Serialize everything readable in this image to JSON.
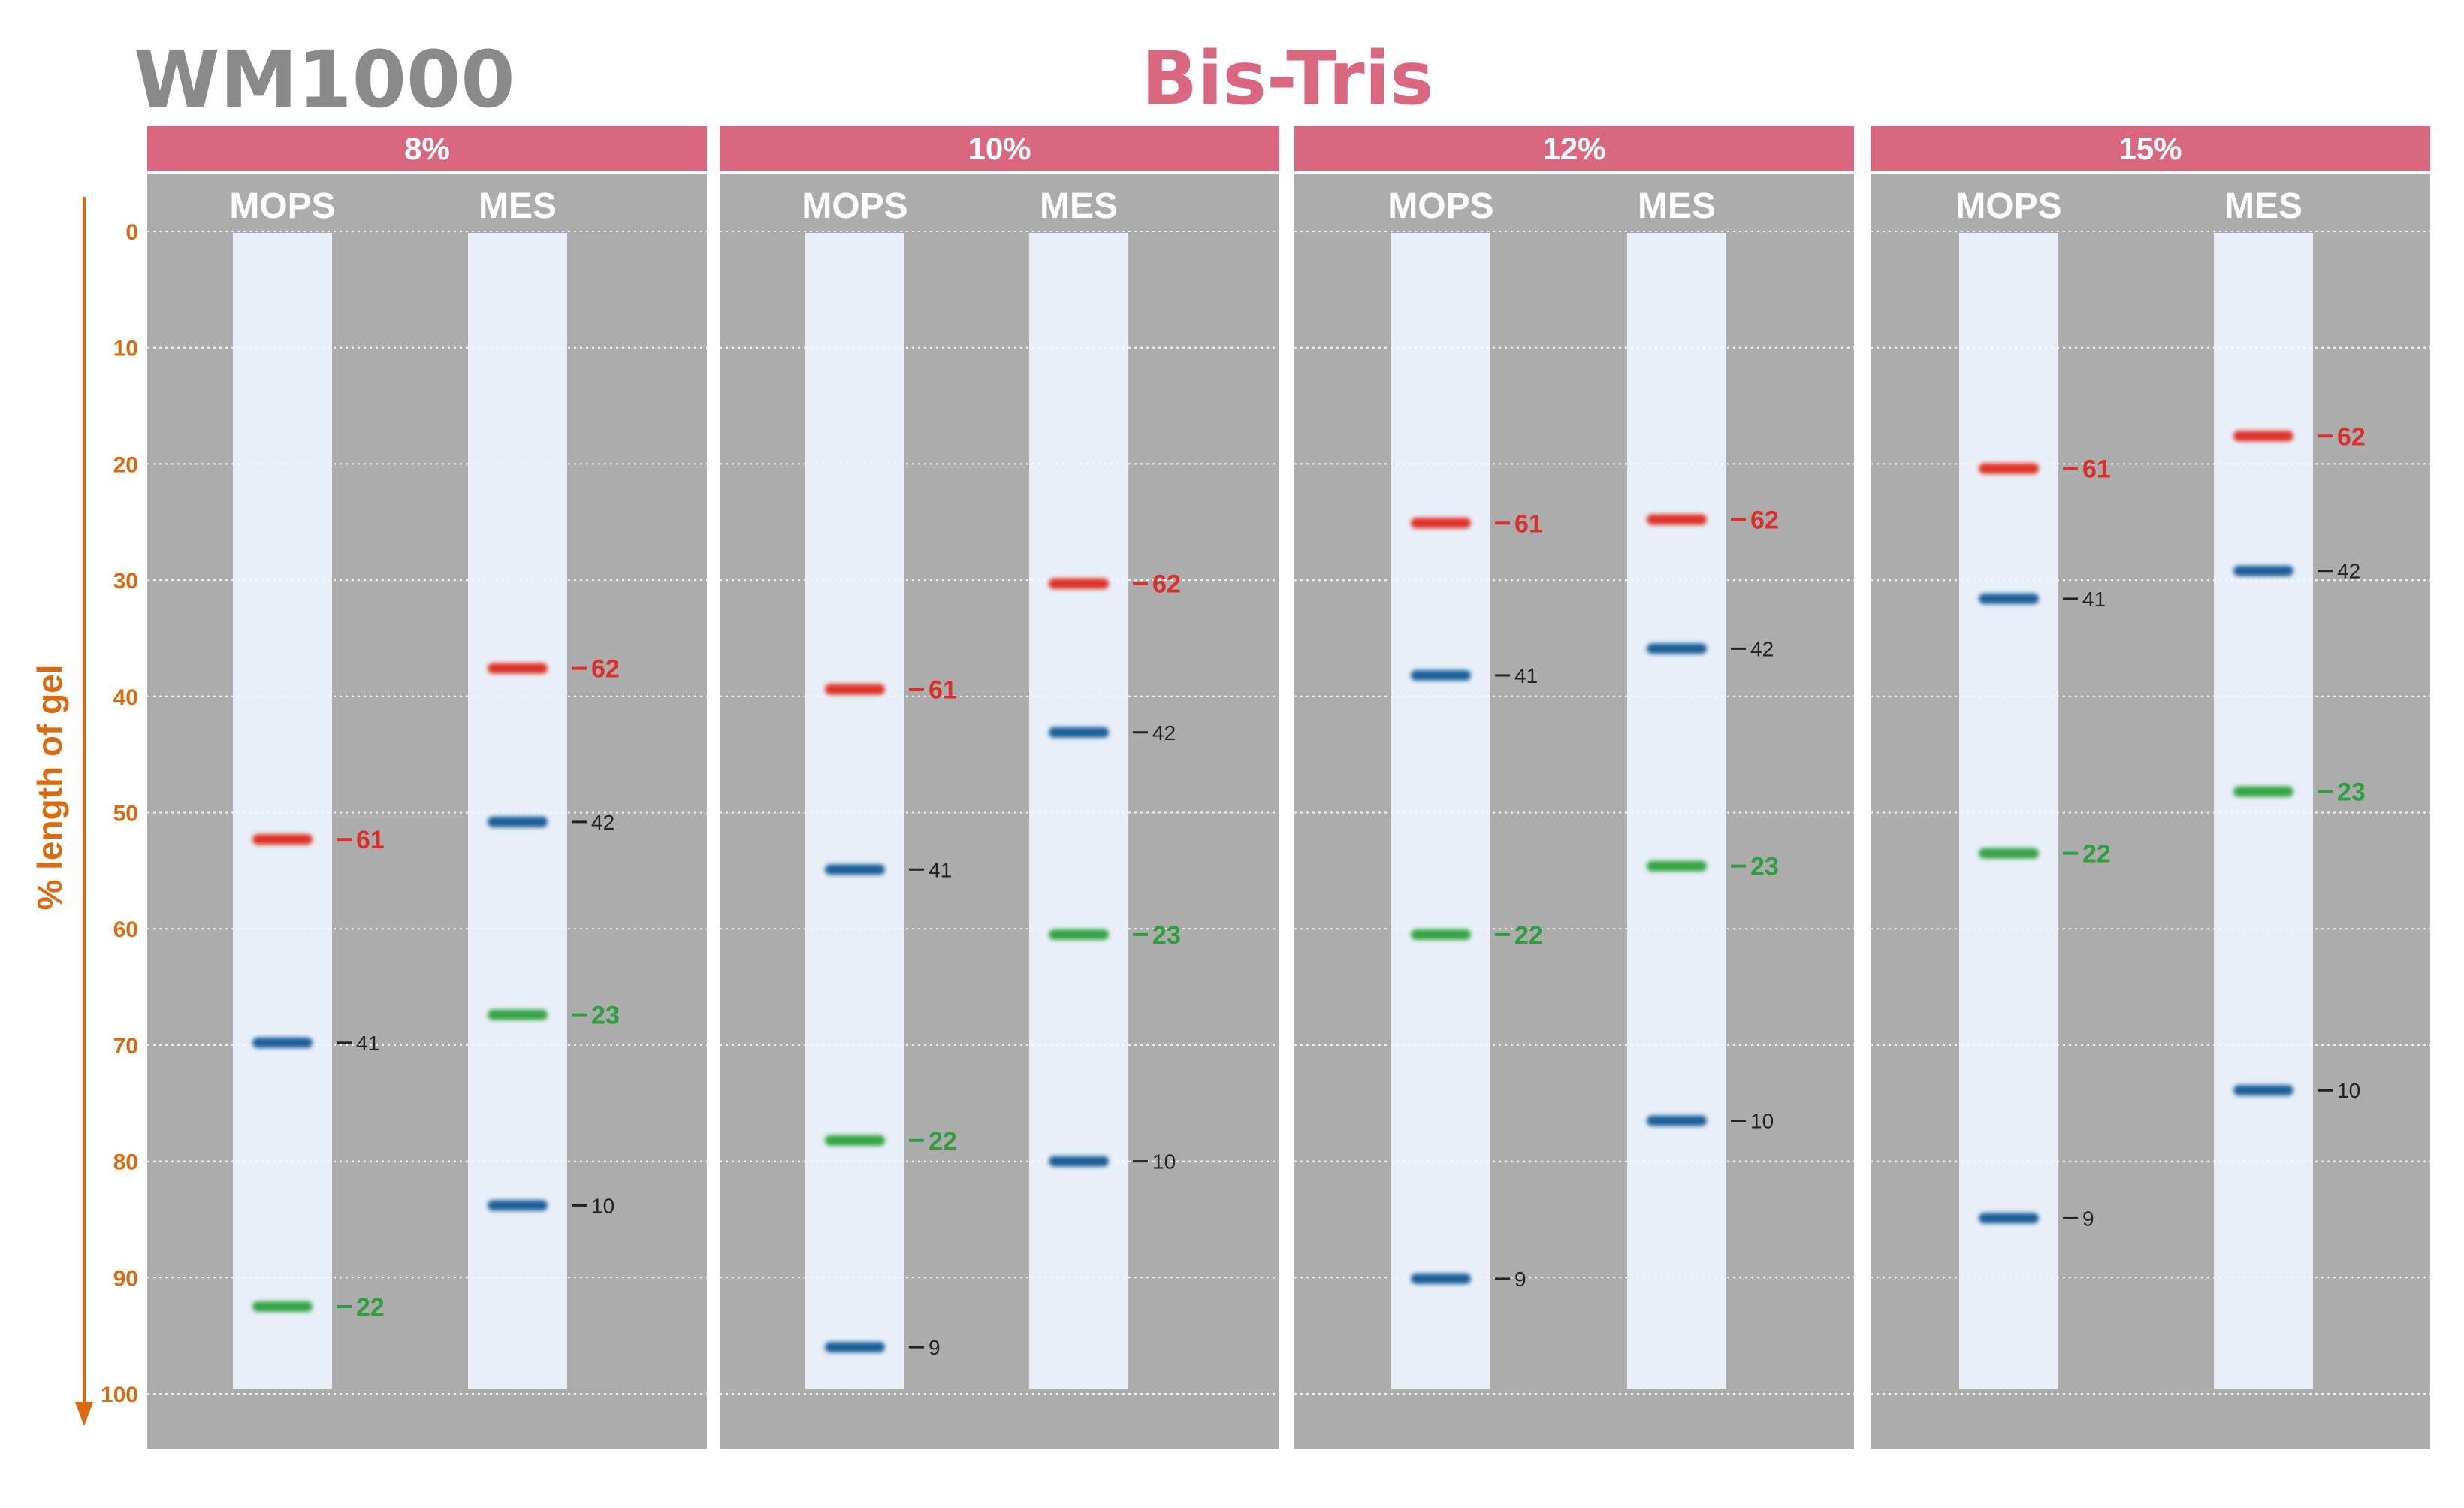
{
  "title": "WM1000",
  "subtitle": "Bis-Tris",
  "colors": {
    "title": "#8a8a8a",
    "subtitle": "#d9677f",
    "header_bg": "#d9677f",
    "panel_bg": "#acacac",
    "lane_bg": "#e8eff8",
    "axis": "#d96a12",
    "band_red": "#e03228",
    "band_blue": "#1f5f9a",
    "band_green": "#34a444",
    "label_red": "#d8302a",
    "label_green": "#2e9e3e",
    "label_black": "#222222"
  },
  "chart_data": {
    "type": "gel-ladder",
    "title": "WM1000",
    "subtitle": "Bis-Tris",
    "ylabel": "% length of gel",
    "ylim": [
      0,
      100
    ],
    "yticks": [
      0,
      10,
      20,
      30,
      40,
      50,
      60,
      70,
      80,
      90,
      100
    ],
    "panels": [
      {
        "header": "8%",
        "lanes": [
          {
            "name": "MOPS",
            "bands": [
              {
                "label": "61",
                "position": 52.3,
                "color": "red"
              },
              {
                "label": "41",
                "position": 69.8,
                "color": "blue"
              },
              {
                "label": "22",
                "position": 92.5,
                "color": "green"
              }
            ]
          },
          {
            "name": "MES",
            "bands": [
              {
                "label": "62",
                "position": 37.6,
                "color": "red"
              },
              {
                "label": "42",
                "position": 50.8,
                "color": "blue"
              },
              {
                "label": "23",
                "position": 67.4,
                "color": "green"
              },
              {
                "label": "10",
                "position": 83.8,
                "color": "blue"
              }
            ]
          }
        ]
      },
      {
        "header": "10%",
        "lanes": [
          {
            "name": "MOPS",
            "bands": [
              {
                "label": "61",
                "position": 39.4,
                "color": "red"
              },
              {
                "label": "41",
                "position": 54.9,
                "color": "blue"
              },
              {
                "label": "22",
                "position": 78.2,
                "color": "green"
              },
              {
                "label": "9",
                "position": 96.0,
                "color": "blue"
              }
            ]
          },
          {
            "name": "MES",
            "bands": [
              {
                "label": "62",
                "position": 30.3,
                "color": "red"
              },
              {
                "label": "42",
                "position": 43.1,
                "color": "blue"
              },
              {
                "label": "23",
                "position": 60.5,
                "color": "green"
              },
              {
                "label": "10",
                "position": 80.0,
                "color": "blue"
              }
            ]
          }
        ]
      },
      {
        "header": "12%",
        "lanes": [
          {
            "name": "MOPS",
            "bands": [
              {
                "label": "61",
                "position": 25.1,
                "color": "red"
              },
              {
                "label": "41",
                "position": 38.2,
                "color": "blue"
              },
              {
                "label": "22",
                "position": 60.5,
                "color": "green"
              },
              {
                "label": "9",
                "position": 90.1,
                "color": "blue"
              }
            ]
          },
          {
            "name": "MES",
            "bands": [
              {
                "label": "62",
                "position": 24.8,
                "color": "red"
              },
              {
                "label": "42",
                "position": 35.9,
                "color": "blue"
              },
              {
                "label": "23",
                "position": 54.6,
                "color": "green"
              },
              {
                "label": "10",
                "position": 76.5,
                "color": "blue"
              }
            ]
          }
        ]
      },
      {
        "header": "15%",
        "lanes": [
          {
            "name": "MOPS",
            "bands": [
              {
                "label": "61",
                "position": 20.4,
                "color": "red"
              },
              {
                "label": "41",
                "position": 31.6,
                "color": "blue"
              },
              {
                "label": "22",
                "position": 53.5,
                "color": "green"
              },
              {
                "label": "9",
                "position": 84.9,
                "color": "blue"
              }
            ]
          },
          {
            "name": "MES",
            "bands": [
              {
                "label": "62",
                "position": 17.6,
                "color": "red"
              },
              {
                "label": "42",
                "position": 29.2,
                "color": "blue"
              },
              {
                "label": "23",
                "position": 48.2,
                "color": "green"
              },
              {
                "label": "10",
                "position": 73.9,
                "color": "blue"
              }
            ]
          }
        ]
      }
    ]
  }
}
